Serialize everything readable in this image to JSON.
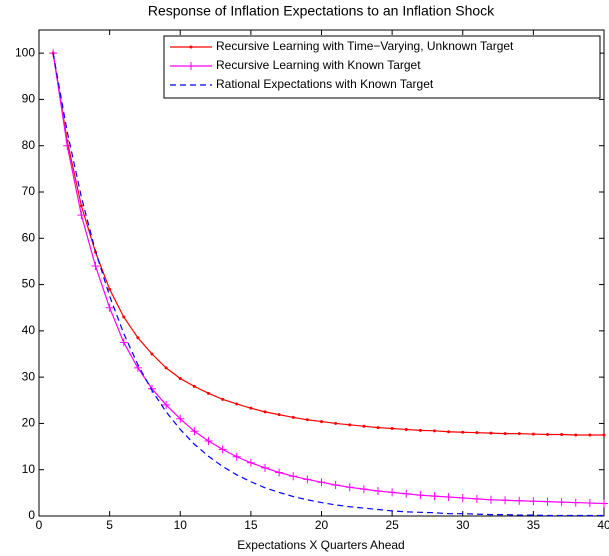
{
  "chart_data": {
    "type": "line",
    "title": "Response of Inflation Expectations to an Inflation Shock",
    "x_label": "Expectations X Quarters Ahead",
    "x": [
      1,
      2,
      3,
      4,
      5,
      6,
      7,
      8,
      9,
      10,
      11,
      12,
      13,
      14,
      15,
      16,
      17,
      18,
      19,
      20,
      21,
      22,
      23,
      24,
      25,
      26,
      27,
      28,
      29,
      30,
      31,
      32,
      33,
      34,
      35,
      36,
      37,
      38,
      39,
      40
    ],
    "series": [
      {
        "name": "Recursive Learning with Time−Varying, Unknown Target",
        "color": "#ff0000",
        "marker": "dot",
        "dash": false,
        "values": [
          100,
          81,
          67,
          57,
          49,
          43,
          38.5,
          35,
          32,
          29.7,
          28,
          26.5,
          25.2,
          24.2,
          23.3,
          22.5,
          21.9,
          21.3,
          20.8,
          20.4,
          20,
          19.7,
          19.4,
          19.1,
          18.9,
          18.7,
          18.5,
          18.4,
          18.2,
          18.1,
          18,
          17.9,
          17.8,
          17.8,
          17.7,
          17.6,
          17.6,
          17.5,
          17.5,
          17.5
        ]
      },
      {
        "name": "Recursive Learning with Known Target",
        "color": "#ff00ff",
        "marker": "plus",
        "dash": false,
        "values": [
          100,
          80,
          65,
          54,
          45,
          37.5,
          32,
          27.5,
          24,
          21,
          18.3,
          16.2,
          14.4,
          12.8,
          11.5,
          10.4,
          9.4,
          8.6,
          7.9,
          7.3,
          6.7,
          6.2,
          5.8,
          5.4,
          5.1,
          4.8,
          4.5,
          4.3,
          4.1,
          3.9,
          3.7,
          3.5,
          3.4,
          3.3,
          3.2,
          3.1,
          3,
          2.9,
          2.8,
          2.7
        ]
      },
      {
        "name": "Rational Expectations with Known Target",
        "color": "#0000ff",
        "marker": "none",
        "dash": true,
        "values": [
          100,
          83,
          68.9,
          57.2,
          47.5,
          39.4,
          32.7,
          27.1,
          22.5,
          18.7,
          15.5,
          12.9,
          10.7,
          8.9,
          7.4,
          6.1,
          5.1,
          4.2,
          3.5,
          2.9,
          2.4,
          2,
          1.7,
          1.4,
          1.1,
          0.9,
          0.8,
          0.7,
          0.5,
          0.5,
          0.4,
          0.3,
          0.3,
          0.2,
          0.2,
          0.1,
          0.1,
          0.1,
          0.1,
          0.1
        ]
      }
    ],
    "xlim": [
      0,
      40
    ],
    "xticks": [
      0,
      5,
      10,
      15,
      20,
      25,
      30,
      35,
      40
    ],
    "ylim": [
      0,
      105
    ],
    "yticks": [
      0,
      10,
      20,
      30,
      40,
      50,
      60,
      70,
      80,
      90,
      100
    ],
    "grid": false,
    "legend": "top-right"
  }
}
